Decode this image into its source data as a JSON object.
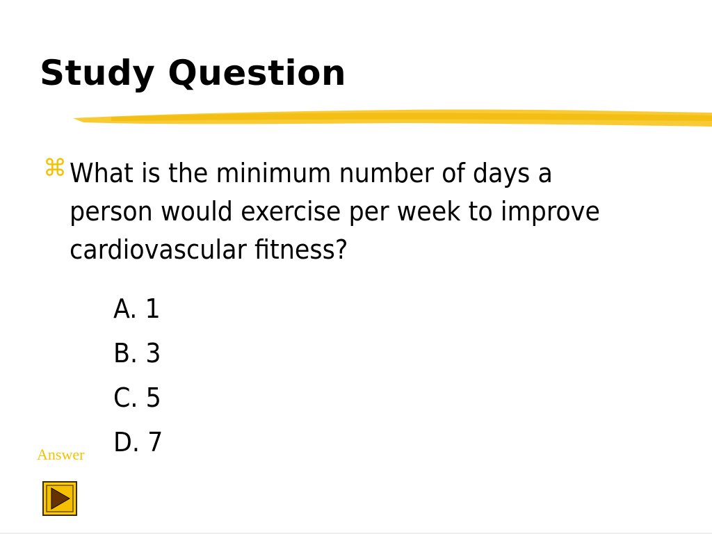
{
  "slide": {
    "title": "Study Question",
    "bullet_icon": "command-key-bullet",
    "question": "What is the minimum number of days a person would exercise per week to improve cardiovascular fitness?",
    "options": [
      "A. 1",
      "B. 3",
      "C. 5",
      "D. 7"
    ],
    "answer_link": "Answer",
    "play_button_icon": "play-triangle-icon",
    "colors": {
      "accent": "#F2C200",
      "stroke": "#F5C518",
      "button_fill": "#FFCC00",
      "button_arrow": "#663300"
    }
  }
}
